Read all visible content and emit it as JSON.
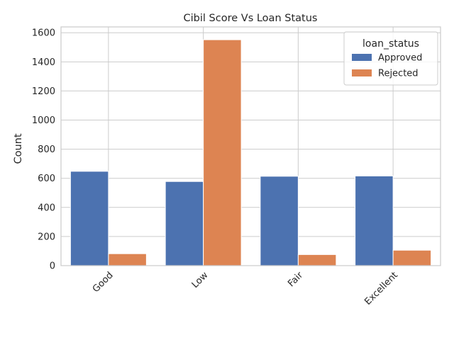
{
  "chart_data": {
    "type": "bar",
    "title": "Cibil Score Vs Loan Status",
    "xlabel": "",
    "ylabel": "Count",
    "categories": [
      "Good",
      "Low",
      "Fair",
      "Excellent"
    ],
    "series": [
      {
        "name": " Approved",
        "values": [
          648,
          578,
          614,
          616
        ]
      },
      {
        "name": " Rejected",
        "values": [
          82,
          1552,
          76,
          106
        ]
      }
    ],
    "ylim": [
      0,
      1640
    ],
    "yticks": [
      0,
      200,
      400,
      600,
      800,
      1000,
      1200,
      1400,
      1600
    ],
    "legend_title": "loan_status",
    "legend_position": "top-right",
    "grid": true,
    "colors": [
      "#4c72b0",
      "#dd8452"
    ]
  }
}
